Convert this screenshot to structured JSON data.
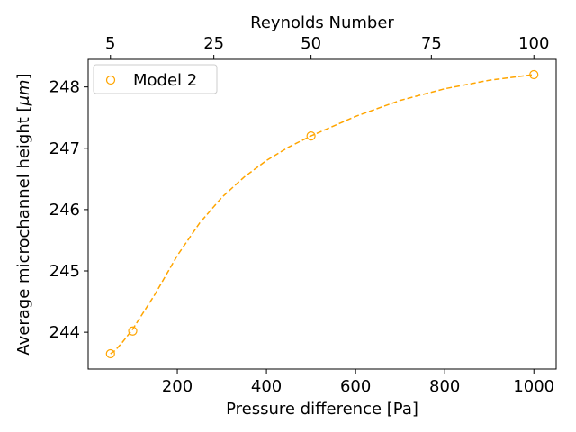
{
  "chart_data": {
    "type": "scatter",
    "xlabel": "Pressure difference [Pa]",
    "ylabel": "Average microchannel height [",
    "ylabel_unit": "μm",
    "ylabel_close": "]",
    "top_xlabel": "Reynolds Number",
    "xlim": [
      0,
      1050
    ],
    "ylim": [
      243.4,
      248.45
    ],
    "x_ticks": [
      200,
      400,
      600,
      800,
      1000
    ],
    "y_ticks": [
      244,
      245,
      246,
      247,
      248
    ],
    "top_ticks": [
      {
        "label": "5",
        "pressure": 50
      },
      {
        "label": "25",
        "pressure": 282
      },
      {
        "label": "50",
        "pressure": 500
      },
      {
        "label": "75",
        "pressure": 770
      },
      {
        "label": "100",
        "pressure": 1000
      }
    ],
    "series": [
      {
        "name": "Model 2",
        "color": "#ffa500",
        "marker": "open-circle",
        "points": [
          {
            "x": 50,
            "y": 243.65
          },
          {
            "x": 100,
            "y": 244.02
          },
          {
            "x": 500,
            "y": 247.2
          },
          {
            "x": 1000,
            "y": 248.2
          }
        ],
        "fit_curve": [
          {
            "x": 50,
            "y": 243.65
          },
          {
            "x": 60,
            "y": 243.7
          },
          {
            "x": 75,
            "y": 243.82
          },
          {
            "x": 100,
            "y": 244.05
          },
          {
            "x": 150,
            "y": 244.62
          },
          {
            "x": 200,
            "y": 245.25
          },
          {
            "x": 250,
            "y": 245.78
          },
          {
            "x": 300,
            "y": 246.2
          },
          {
            "x": 350,
            "y": 246.53
          },
          {
            "x": 400,
            "y": 246.8
          },
          {
            "x": 450,
            "y": 247.02
          },
          {
            "x": 500,
            "y": 247.2
          },
          {
            "x": 600,
            "y": 247.52
          },
          {
            "x": 700,
            "y": 247.78
          },
          {
            "x": 800,
            "y": 247.97
          },
          {
            "x": 900,
            "y": 248.11
          },
          {
            "x": 1000,
            "y": 248.2
          }
        ]
      }
    ],
    "legend": {
      "position": "top-left",
      "entries": [
        "Model 2"
      ]
    },
    "grid": false
  }
}
